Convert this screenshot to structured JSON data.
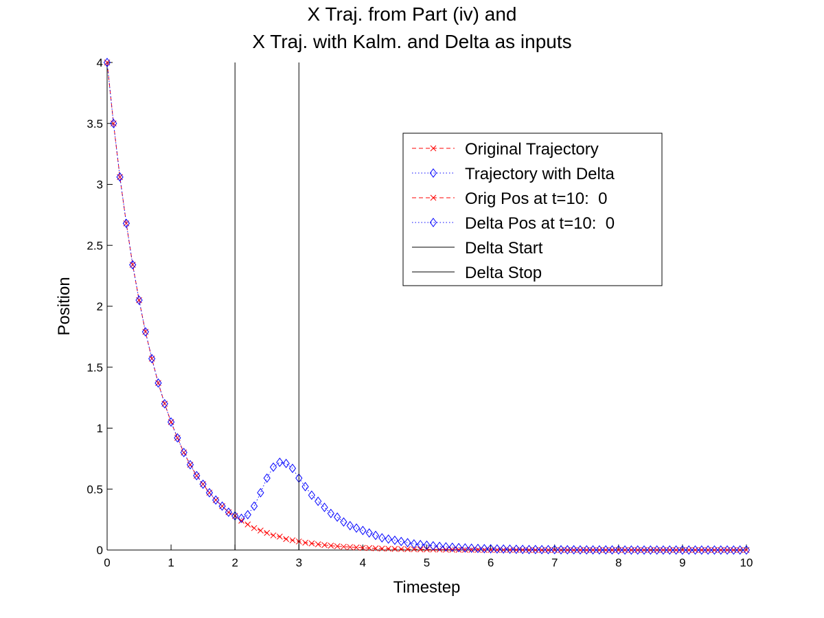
{
  "chart_data": {
    "type": "line",
    "title": [
      "X Traj. from Part (iv) and",
      "X Traj. with Kalm. and Delta as inputs"
    ],
    "xlabel": "Timestep",
    "ylabel": "Position",
    "xlim": [
      0,
      10
    ],
    "ylim": [
      0,
      4
    ],
    "xticks": [
      0,
      1,
      2,
      3,
      4,
      5,
      6,
      7,
      8,
      9,
      10
    ],
    "yticks": [
      0,
      0.5,
      1,
      1.5,
      2,
      2.5,
      3,
      3.5,
      4
    ],
    "grid": false,
    "legend_position": "top-right",
    "series": [
      {
        "name": "Original Trajectory",
        "color": "#ff0000",
        "line_style": "dashed",
        "marker": "x",
        "x": [
          0,
          0.1,
          0.2,
          0.3,
          0.4,
          0.5,
          0.6,
          0.7,
          0.8,
          0.9,
          1.0,
          1.1,
          1.2,
          1.3,
          1.4,
          1.5,
          1.6,
          1.7,
          1.8,
          1.9,
          2.0,
          2.1,
          2.2,
          2.3,
          2.4,
          2.5,
          2.6,
          2.7,
          2.8,
          2.9,
          3.0,
          3.1,
          3.2,
          3.3,
          3.4,
          3.5,
          3.6,
          3.7,
          3.8,
          3.9,
          4.0,
          4.1,
          4.2,
          4.3,
          4.4,
          4.5,
          4.6,
          4.7,
          4.8,
          4.9,
          5.0,
          5.1,
          5.2,
          5.3,
          5.4,
          5.5,
          5.6,
          5.7,
          5.8,
          5.9,
          6.0,
          6.1,
          6.2,
          6.3,
          6.4,
          6.5,
          6.6,
          6.7,
          6.8,
          6.9,
          7.0,
          7.1,
          7.2,
          7.3,
          7.4,
          7.5,
          7.6,
          7.7,
          7.8,
          7.9,
          8.0,
          8.1,
          8.2,
          8.3,
          8.4,
          8.5,
          8.6,
          8.7,
          8.8,
          8.9,
          9.0,
          9.1,
          9.2,
          9.3,
          9.4,
          9.5,
          9.6,
          9.7,
          9.8,
          9.9,
          10.0
        ],
        "y": [
          4.0,
          3.5,
          3.06,
          2.68,
          2.34,
          2.05,
          1.79,
          1.57,
          1.37,
          1.2,
          1.05,
          0.92,
          0.8,
          0.7,
          0.61,
          0.54,
          0.47,
          0.41,
          0.36,
          0.31,
          0.28,
          0.24,
          0.21,
          0.18,
          0.16,
          0.14,
          0.12,
          0.11,
          0.09,
          0.08,
          0.07,
          0.06,
          0.054,
          0.047,
          0.041,
          0.036,
          0.031,
          0.027,
          0.024,
          0.021,
          0.018,
          0.016,
          0.014,
          0.012,
          0.011,
          0.009,
          0.008,
          0.007,
          0.006,
          0.005,
          0.005,
          0.004,
          0.004,
          0.003,
          0.003,
          0.002,
          0.002,
          0.002,
          0.002,
          0.001,
          0.001,
          0.001,
          0.001,
          0.001,
          0.001,
          0.001,
          0.0,
          0.0,
          0.0,
          0.0,
          0.0,
          0.0,
          0.0,
          0.0,
          0.0,
          0.0,
          0.0,
          0.0,
          0.0,
          0.0,
          0.0,
          0.0,
          0.0,
          0.0,
          0.0,
          0.0,
          0.0,
          0.0,
          0.0,
          0.0,
          0.0,
          0.0,
          0.0,
          0.0,
          0.0,
          0.0,
          0.0,
          0.0,
          0.0,
          0.0,
          0.0
        ]
      },
      {
        "name": "Trajectory with Delta",
        "color": "#0000ff",
        "line_style": "dotted",
        "marker": "diamond",
        "x": [
          0,
          0.1,
          0.2,
          0.3,
          0.4,
          0.5,
          0.6,
          0.7,
          0.8,
          0.9,
          1.0,
          1.1,
          1.2,
          1.3,
          1.4,
          1.5,
          1.6,
          1.7,
          1.8,
          1.9,
          2.0,
          2.1,
          2.2,
          2.3,
          2.4,
          2.5,
          2.6,
          2.7,
          2.8,
          2.9,
          3.0,
          3.1,
          3.2,
          3.3,
          3.4,
          3.5,
          3.6,
          3.7,
          3.8,
          3.9,
          4.0,
          4.1,
          4.2,
          4.3,
          4.4,
          4.5,
          4.6,
          4.7,
          4.8,
          4.9,
          5.0,
          5.1,
          5.2,
          5.3,
          5.4,
          5.5,
          5.6,
          5.7,
          5.8,
          5.9,
          6.0,
          6.1,
          6.2,
          6.3,
          6.4,
          6.5,
          6.6,
          6.7,
          6.8,
          6.9,
          7.0,
          7.1,
          7.2,
          7.3,
          7.4,
          7.5,
          7.6,
          7.7,
          7.8,
          7.9,
          8.0,
          8.1,
          8.2,
          8.3,
          8.4,
          8.5,
          8.6,
          8.7,
          8.8,
          8.9,
          9.0,
          9.1,
          9.2,
          9.3,
          9.4,
          9.5,
          9.6,
          9.7,
          9.8,
          9.9,
          10.0
        ],
        "y": [
          4.0,
          3.5,
          3.06,
          2.68,
          2.34,
          2.05,
          1.79,
          1.57,
          1.37,
          1.2,
          1.05,
          0.92,
          0.8,
          0.7,
          0.61,
          0.54,
          0.47,
          0.41,
          0.36,
          0.31,
          0.28,
          0.26,
          0.29,
          0.36,
          0.47,
          0.59,
          0.68,
          0.72,
          0.71,
          0.67,
          0.59,
          0.52,
          0.45,
          0.4,
          0.35,
          0.3,
          0.27,
          0.23,
          0.2,
          0.18,
          0.16,
          0.14,
          0.12,
          0.1,
          0.09,
          0.08,
          0.07,
          0.06,
          0.05,
          0.045,
          0.04,
          0.035,
          0.03,
          0.026,
          0.023,
          0.02,
          0.017,
          0.015,
          0.013,
          0.011,
          0.01,
          0.009,
          0.008,
          0.007,
          0.006,
          0.005,
          0.004,
          0.004,
          0.003,
          0.003,
          0.003,
          0.002,
          0.002,
          0.002,
          0.001,
          0.001,
          0.001,
          0.001,
          0.001,
          0.001,
          0.001,
          0.0,
          0.0,
          0.0,
          0.0,
          0.0,
          0.0,
          0.0,
          0.0,
          0.0,
          0.0,
          0.0,
          0.0,
          0.0,
          0.0,
          0.0,
          0.0,
          0.0,
          0.0,
          0.0,
          0.0
        ]
      },
      {
        "name": "Orig Pos at t=10:  0",
        "color": "#ff0000",
        "line_style": "dashed",
        "marker": "x",
        "x": [],
        "y": []
      },
      {
        "name": "Delta Pos at t=10:  0",
        "color": "#0000ff",
        "line_style": "dotted",
        "marker": "diamond",
        "x": [],
        "y": []
      },
      {
        "name": "Delta Start",
        "color": "#000000",
        "line_style": "solid",
        "marker": "none",
        "x": [
          2,
          2
        ],
        "y": [
          0,
          4
        ]
      },
      {
        "name": "Delta Stop",
        "color": "#000000",
        "line_style": "solid",
        "marker": "none",
        "x": [
          3,
          3
        ],
        "y": [
          0,
          4
        ]
      }
    ]
  }
}
